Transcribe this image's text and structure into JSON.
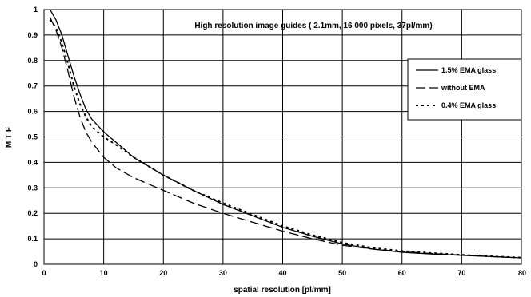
{
  "chart_data": {
    "type": "line",
    "title": "High resolution image guides  ( 2.1mm, 16 000 pixels, 37pl/mm)",
    "xlabel": "spatial resolution [pl/mm]",
    "ylabel": "M T F",
    "xlim": [
      0,
      80
    ],
    "ylim": [
      0,
      1
    ],
    "xticks": [
      "0",
      "10",
      "20",
      "30",
      "40",
      "50",
      "60",
      "70",
      "80"
    ],
    "yticks": [
      "0",
      "0.1",
      "0.2",
      "0.3",
      "0.4",
      "0.5",
      "0.6",
      "0.7",
      "0.8",
      "0.9",
      "1"
    ],
    "grid": true,
    "legend_position": "right",
    "series": [
      {
        "name": "1.5% EMA glass",
        "style": "solid",
        "color": "#000000",
        "x": [
          1,
          2,
          3,
          4,
          5,
          6,
          7,
          8,
          10,
          12,
          15,
          20,
          25,
          30,
          35,
          40,
          45,
          50,
          55,
          60,
          65,
          70,
          75,
          80
        ],
        "y": [
          1.0,
          0.96,
          0.9,
          0.82,
          0.74,
          0.67,
          0.61,
          0.57,
          0.52,
          0.48,
          0.42,
          0.35,
          0.29,
          0.235,
          0.19,
          0.145,
          0.11,
          0.08,
          0.06,
          0.047,
          0.04,
          0.035,
          0.03,
          0.025
        ]
      },
      {
        "name": "without EMA",
        "style": "dashed",
        "color": "#000000",
        "x": [
          1,
          2,
          3,
          4,
          5,
          6,
          7,
          8,
          10,
          12,
          15,
          20,
          25,
          30,
          35,
          40,
          45,
          50,
          55,
          60,
          65,
          70,
          75,
          80
        ],
        "y": [
          0.97,
          0.92,
          0.85,
          0.76,
          0.66,
          0.58,
          0.52,
          0.48,
          0.42,
          0.38,
          0.34,
          0.29,
          0.24,
          0.2,
          0.165,
          0.13,
          0.1,
          0.075,
          0.06,
          0.05,
          0.042,
          0.036,
          0.03,
          0.025
        ]
      },
      {
        "name": "0.4% EMA glass",
        "style": "dotted",
        "color": "#000000",
        "x": [
          1,
          2,
          3,
          4,
          5,
          6,
          7,
          8,
          10,
          12,
          15,
          20,
          25,
          30,
          35,
          40,
          45,
          50,
          55,
          60,
          65,
          70,
          75,
          80
        ],
        "y": [
          0.96,
          0.93,
          0.87,
          0.79,
          0.7,
          0.63,
          0.58,
          0.54,
          0.5,
          0.47,
          0.42,
          0.35,
          0.29,
          0.24,
          0.195,
          0.15,
          0.115,
          0.085,
          0.065,
          0.052,
          0.044,
          0.037,
          0.031,
          0.026
        ]
      }
    ]
  }
}
